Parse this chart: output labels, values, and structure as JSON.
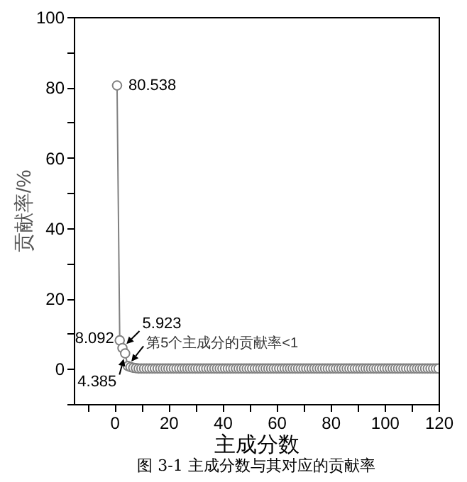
{
  "chart_data": {
    "type": "line",
    "xlabel": "主成分数",
    "ylabel": "贡献率/%",
    "x": [
      1,
      2,
      3,
      4,
      5,
      6,
      7,
      8,
      9,
      10,
      11,
      12,
      13,
      14,
      15,
      16,
      17,
      18,
      19,
      20,
      21,
      22,
      23,
      24,
      25,
      26,
      27,
      28,
      29,
      30,
      31,
      32,
      33,
      34,
      35,
      36,
      37,
      38,
      39,
      40,
      41,
      42,
      43,
      44,
      45,
      46,
      47,
      48,
      49,
      50,
      51,
      52,
      53,
      54,
      55,
      56,
      57,
      58,
      59,
      60,
      61,
      62,
      63,
      64,
      65,
      66,
      67,
      68,
      69,
      70,
      71,
      72,
      73,
      74,
      75,
      76,
      77,
      78,
      79,
      80,
      81,
      82,
      83,
      84,
      85,
      86,
      87,
      88,
      89,
      90,
      91,
      92,
      93,
      94,
      95,
      96,
      97,
      98,
      99,
      100,
      101,
      102,
      103,
      104,
      105,
      106,
      107,
      108,
      109,
      110,
      111,
      112,
      113,
      114,
      115,
      116,
      117,
      118,
      119,
      120
    ],
    "series": [
      {
        "color": "#808080",
        "values": [
          80.538,
          8.092,
          5.923,
          4.385,
          0.8,
          0.5,
          0.3,
          0.2,
          0.1,
          0.1,
          0.1,
          0.1,
          0.1,
          0.1,
          0.1,
          0.1,
          0.1,
          0.1,
          0.1,
          0.1,
          0.1,
          0.1,
          0.1,
          0.1,
          0.1,
          0.1,
          0.1,
          0.1,
          0.1,
          0.1,
          0.1,
          0.1,
          0.1,
          0.1,
          0.1,
          0.1,
          0.1,
          0.1,
          0.1,
          0.1,
          0.1,
          0.1,
          0.1,
          0.1,
          0.1,
          0.1,
          0.1,
          0.1,
          0.1,
          0.1,
          0.1,
          0.1,
          0.1,
          0.1,
          0.1,
          0.1,
          0.1,
          0.1,
          0.1,
          0.1,
          0.1,
          0.1,
          0.1,
          0.1,
          0.1,
          0.1,
          0.1,
          0.1,
          0.1,
          0.1,
          0.1,
          0.1,
          0.1,
          0.1,
          0.1,
          0.1,
          0.1,
          0.1,
          0.1,
          0.1,
          0.1,
          0.1,
          0.1,
          0.1,
          0.1,
          0.1,
          0.1,
          0.1,
          0.1,
          0.1,
          0.1,
          0.1,
          0.1,
          0.1,
          0.1,
          0.1,
          0.1,
          0.1,
          0.1,
          0.1,
          0.1,
          0.1,
          0.1,
          0.1,
          0.1,
          0.1,
          0.1,
          0.1,
          0.1,
          0.1,
          0.1,
          0.1,
          0.1,
          0.1,
          0.1,
          0.1,
          0.1,
          0.1,
          0.1,
          0.1
        ],
        "value_labels": [
          "80.538",
          "8.092",
          "5.923",
          "4.385",
          null,
          null,
          null,
          null,
          null,
          null,
          null,
          null,
          null,
          null,
          null,
          null,
          null,
          null,
          null,
          null,
          null,
          null,
          null,
          null,
          null,
          null,
          null,
          null,
          null,
          null,
          null,
          null,
          null,
          null,
          null,
          null,
          null,
          null,
          null,
          null,
          null,
          null,
          null,
          null,
          null,
          null,
          null,
          null,
          null,
          null,
          null,
          null,
          null,
          null,
          null,
          null,
          null,
          null,
          null,
          null,
          null,
          null,
          null,
          null,
          null,
          null,
          null,
          null,
          null,
          null,
          null,
          null,
          null,
          null,
          null,
          null,
          null,
          null,
          null,
          null,
          null,
          null,
          null,
          null,
          null,
          null,
          null,
          null,
          null,
          null,
          null,
          null,
          null,
          null,
          null,
          null,
          null,
          null,
          null,
          null,
          null,
          null,
          null,
          null,
          null,
          null,
          null,
          null,
          null,
          null,
          null,
          null,
          null,
          null,
          null,
          null,
          null,
          null,
          null,
          null
        ]
      }
    ],
    "marker": "circle",
    "xlim": [
      -15,
      120
    ],
    "xticks": [
      {
        "value": -10,
        "label": null
      },
      0,
      {
        "value": 10,
        "label": null
      },
      20,
      {
        "value": 30,
        "label": null
      },
      40,
      {
        "value": 50,
        "label": null
      },
      60,
      {
        "value": 70,
        "label": null
      },
      80,
      {
        "value": 90,
        "label": null
      },
      100,
      {
        "value": 110,
        "label": null
      },
      120
    ],
    "ylim": [
      -10,
      100
    ],
    "yticks": [
      {
        "value": -10,
        "label": null
      },
      0,
      {
        "value": 10,
        "label": null
      },
      20,
      {
        "value": 30,
        "label": null
      },
      40,
      {
        "value": 50,
        "label": null
      },
      60,
      {
        "value": 70,
        "label": null
      },
      80,
      {
        "value": 90,
        "label": null
      },
      100
    ],
    "annotations": [
      {
        "text": "第5个主成分的贡献率<1",
        "x": 5,
        "y": 0.8
      },
      "图 3-1 主成分数与其对应的贡献率"
    ]
  }
}
